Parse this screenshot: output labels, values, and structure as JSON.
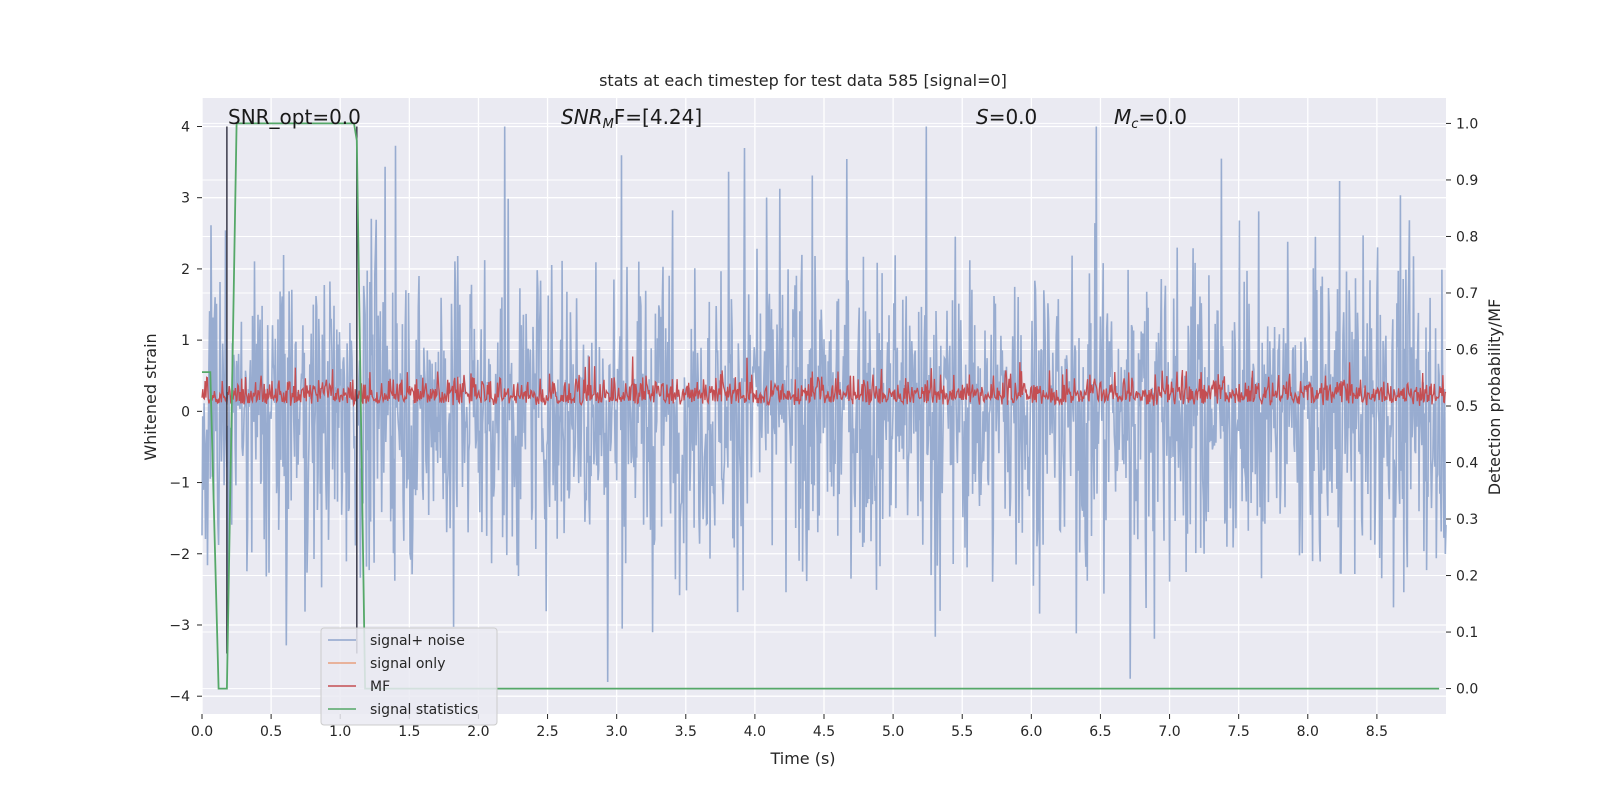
{
  "chart_data": {
    "type": "line",
    "title": "stats at each timestep for test data 585 [signal=0]",
    "xlabel": "Time (s)",
    "ylabel": "Whitened strain",
    "y2label": "Detection probability/MF",
    "xlim": [
      0.0,
      9.0
    ],
    "ylim": [
      -4.25,
      4.4
    ],
    "y2lim": [
      -0.045,
      1.045
    ],
    "x_ticks": [
      "0.0",
      "0.5",
      "1.0",
      "1.5",
      "2.0",
      "2.5",
      "3.0",
      "3.5",
      "4.0",
      "4.5",
      "5.0",
      "5.5",
      "6.0",
      "6.5",
      "7.0",
      "7.5",
      "8.0",
      "8.5"
    ],
    "y_ticks": [
      "4",
      "3",
      "2",
      "1",
      "0",
      "−1",
      "−2",
      "−3",
      "−4"
    ],
    "y2_ticks": [
      "1.0",
      "0.9",
      "0.8",
      "0.7",
      "0.6",
      "0.5",
      "0.4",
      "0.3",
      "0.2",
      "0.1",
      "0.0"
    ],
    "grid": true,
    "legend_position": "lower-left",
    "annotations": {
      "snr_opt": "SNR_opt=0.0",
      "snr_mf_sym": "SNR",
      "snr_mf_sub": "M",
      "snr_mf_rest": "F=[4.24]",
      "s_sym": "S",
      "s_rest": "=0.0",
      "mc_sym": "M",
      "mc_sub": "c",
      "mc_rest": "=0.0"
    },
    "series": [
      {
        "name": "signal+ noise",
        "color": "#8fa5cc",
        "axis": "left",
        "kind": "noise",
        "amplitude_range": [
          -3.8,
          4.0
        ]
      },
      {
        "name": "signal only",
        "color": "#e8a07e",
        "axis": "left",
        "values": []
      },
      {
        "name": "MF",
        "color": "#c44e52",
        "axis": "right",
        "kind": "noise",
        "baseline": 0.5,
        "range": [
          0.49,
          0.61
        ]
      },
      {
        "name": "signal statistics",
        "color": "#55a868",
        "axis": "right",
        "x": [
          0.0,
          0.06,
          0.12,
          0.18,
          0.25,
          1.0,
          1.1,
          1.12,
          1.18,
          8.95
        ],
        "y": [
          0.56,
          0.56,
          0.0,
          0.0,
          1.0,
          1.0,
          1.0,
          0.97,
          0.0,
          0.0
        ]
      }
    ],
    "vertical_markers": {
      "color": "#3a3a4a",
      "x": [
        0.18,
        1.12
      ],
      "range": [
        -3.4,
        4.0
      ]
    }
  }
}
